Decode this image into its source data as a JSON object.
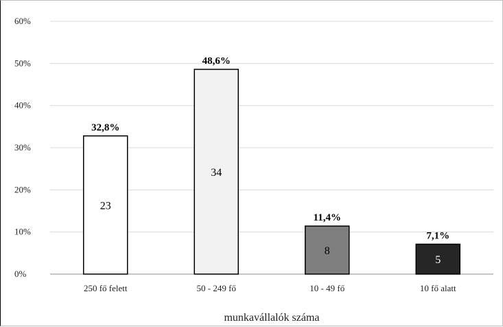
{
  "chart_data": {
    "type": "bar",
    "title": "",
    "xlabel": "munkavállalók száma",
    "ylabel": "",
    "ylim": [
      0,
      60
    ],
    "yticks": [
      "0%",
      "10%",
      "20%",
      "30%",
      "40%",
      "50%",
      "60%"
    ],
    "categories": [
      "250 fő felett",
      "50 - 249 fő",
      "10 - 49 fő",
      "10 fő alatt"
    ],
    "values": [
      32.8,
      48.6,
      11.4,
      7.1
    ],
    "value_labels": [
      "32,8%",
      "48,6%",
      "11,4%",
      "7,1%"
    ],
    "counts": [
      "23",
      "34",
      "8",
      "5"
    ],
    "bar_colors": [
      "#ffffff",
      "#f2f2f2",
      "#7f7f7f",
      "#262626"
    ],
    "count_colors": [
      "#000000",
      "#000000",
      "#000000",
      "#ffffff"
    ],
    "grid": true,
    "legend": "none"
  }
}
